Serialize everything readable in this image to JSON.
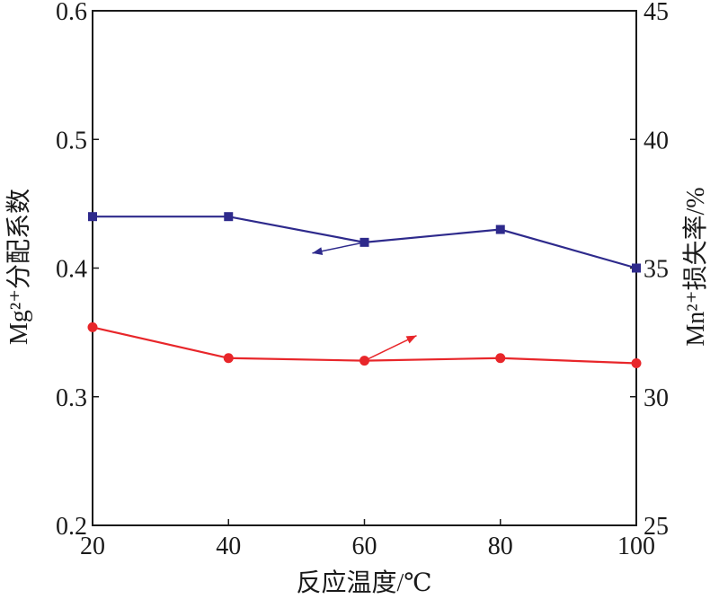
{
  "chart_data": {
    "type": "line",
    "xlabel": "反应温度/℃",
    "ylabel_left": "Mg²⁺分配系数",
    "ylabel_right": "Mn²⁺损失率/%",
    "x": [
      20,
      40,
      60,
      80,
      100
    ],
    "xlim": [
      20,
      100
    ],
    "ylim_left": [
      0.2,
      0.6
    ],
    "ylim_right": [
      25,
      45
    ],
    "x_ticks": [
      "20",
      "40",
      "60",
      "80",
      "100"
    ],
    "left_ticks": [
      "0.2",
      "0.3",
      "0.4",
      "0.5",
      "0.6"
    ],
    "right_ticks": [
      "25",
      "30",
      "35",
      "40",
      "45"
    ],
    "grid": false,
    "series": [
      {
        "axis": "left",
        "color": "#2e2a8c",
        "marker": "square",
        "values": [
          0.44,
          0.44,
          0.42,
          0.43,
          0.4
        ],
        "arrow_direction": "left"
      },
      {
        "axis": "right",
        "color": "#e8262a",
        "marker": "circle",
        "values": [
          32.7,
          31.5,
          31.4,
          31.5,
          31.3
        ],
        "arrow_direction": "right"
      }
    ]
  }
}
